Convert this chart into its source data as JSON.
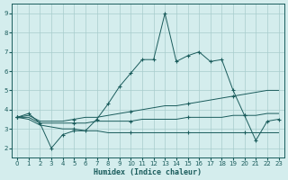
{
  "xlabel": "Humidex (Indice chaleur)",
  "xlim": [
    -0.5,
    23.5
  ],
  "ylim": [
    1.5,
    9.5
  ],
  "xticks": [
    0,
    1,
    2,
    3,
    4,
    5,
    6,
    7,
    8,
    9,
    10,
    11,
    12,
    13,
    14,
    15,
    16,
    17,
    18,
    19,
    20,
    21,
    22,
    23
  ],
  "yticks": [
    2,
    3,
    4,
    5,
    6,
    7,
    8,
    9
  ],
  "bg_color": "#d4eded",
  "grid_color": "#a8cccc",
  "line_color": "#1a5c5c",
  "series": [
    {
      "x": [
        0,
        1,
        2,
        3,
        4,
        5,
        6,
        7,
        8,
        9,
        10,
        11,
        12,
        13,
        14,
        15,
        16,
        17,
        18,
        19,
        20,
        21,
        22,
        23
      ],
      "y": [
        3.6,
        3.8,
        3.3,
        2.0,
        2.7,
        2.9,
        2.9,
        3.5,
        4.3,
        5.2,
        5.9,
        6.6,
        6.6,
        9.0,
        6.5,
        6.8,
        7.0,
        6.5,
        6.6,
        5.0,
        3.7,
        2.4,
        3.4,
        3.5
      ],
      "marker_x": [
        0,
        1,
        2,
        3,
        4,
        5,
        6,
        7,
        8,
        9,
        10,
        11,
        12,
        13,
        14,
        15,
        16,
        17,
        18,
        19,
        20,
        21,
        22,
        23
      ],
      "marker_y": [
        3.6,
        3.8,
        3.3,
        2.0,
        2.7,
        2.9,
        2.9,
        3.5,
        4.3,
        5.2,
        5.9,
        6.6,
        6.6,
        9.0,
        6.5,
        6.8,
        7.0,
        6.5,
        6.6,
        5.0,
        3.7,
        2.4,
        3.4,
        3.5
      ]
    },
    {
      "x": [
        0,
        1,
        2,
        3,
        4,
        5,
        6,
        7,
        8,
        9,
        10,
        11,
        12,
        13,
        14,
        15,
        16,
        17,
        18,
        19,
        20,
        21,
        22,
        23
      ],
      "y": [
        3.6,
        3.7,
        3.4,
        3.4,
        3.4,
        3.5,
        3.6,
        3.6,
        3.7,
        3.8,
        3.9,
        4.0,
        4.1,
        4.2,
        4.2,
        4.3,
        4.4,
        4.5,
        4.6,
        4.7,
        4.8,
        4.9,
        5.0,
        5.0
      ],
      "marker_x": [
        0,
        5,
        10,
        15,
        19
      ],
      "marker_y": [
        3.6,
        3.5,
        3.9,
        4.3,
        4.7
      ]
    },
    {
      "x": [
        0,
        1,
        2,
        3,
        4,
        5,
        6,
        7,
        8,
        9,
        10,
        11,
        12,
        13,
        14,
        15,
        16,
        17,
        18,
        19,
        20,
        21,
        22,
        23
      ],
      "y": [
        3.6,
        3.6,
        3.3,
        3.3,
        3.3,
        3.3,
        3.3,
        3.4,
        3.4,
        3.4,
        3.4,
        3.5,
        3.5,
        3.5,
        3.5,
        3.6,
        3.6,
        3.6,
        3.6,
        3.7,
        3.7,
        3.7,
        3.8,
        3.8
      ],
      "marker_x": [
        0,
        5,
        10,
        15,
        20
      ],
      "marker_y": [
        3.6,
        3.3,
        3.4,
        3.6,
        3.7
      ]
    },
    {
      "x": [
        0,
        1,
        2,
        3,
        4,
        5,
        6,
        7,
        8,
        9,
        10,
        11,
        12,
        13,
        14,
        15,
        16,
        17,
        18,
        19,
        20,
        21,
        22,
        23
      ],
      "y": [
        3.6,
        3.5,
        3.2,
        3.1,
        3.0,
        3.0,
        2.9,
        2.9,
        2.8,
        2.8,
        2.8,
        2.8,
        2.8,
        2.8,
        2.8,
        2.8,
        2.8,
        2.8,
        2.8,
        2.8,
        2.8,
        2.8,
        2.8,
        2.8
      ],
      "marker_x": [
        0,
        5,
        10,
        15,
        20
      ],
      "marker_y": [
        3.6,
        3.0,
        2.8,
        2.8,
        2.8
      ]
    }
  ]
}
